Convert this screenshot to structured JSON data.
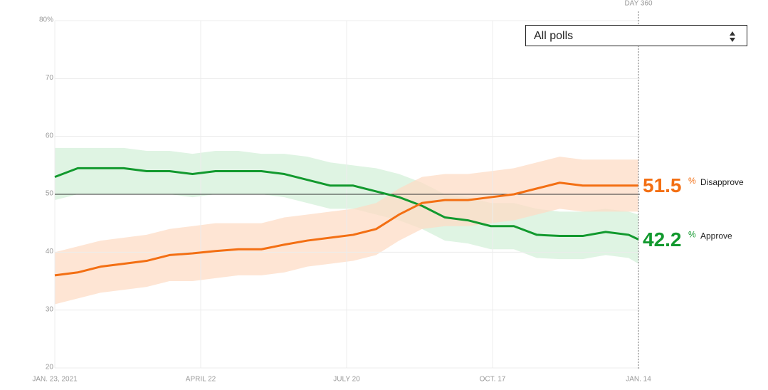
{
  "controls": {
    "dropdown": "All polls"
  },
  "chart_data": {
    "type": "line",
    "annotation": "DAY 360",
    "unit": "%",
    "x": [
      "2021-01-23",
      "2021-02-06",
      "2021-02-20",
      "2021-03-06",
      "2021-03-20",
      "2021-04-03",
      "2021-04-17",
      "2021-05-01",
      "2021-05-15",
      "2021-05-29",
      "2021-06-12",
      "2021-06-26",
      "2021-07-10",
      "2021-07-24",
      "2021-08-07",
      "2021-08-21",
      "2021-09-04",
      "2021-09-18",
      "2021-10-02",
      "2021-10-16",
      "2021-10-30",
      "2021-11-13",
      "2021-11-27",
      "2021-12-11",
      "2021-12-25",
      "2022-01-08",
      "2022-01-14"
    ],
    "xlim": [
      "2021-01-23",
      "2022-01-14"
    ],
    "xticks": [
      {
        "value": "2021-01-23",
        "label": "JAN. 23, 2021"
      },
      {
        "value": "2021-04-22",
        "label": "APRIL 22"
      },
      {
        "value": "2021-07-20",
        "label": "JULY 20"
      },
      {
        "value": "2021-10-17",
        "label": "OCT. 17"
      },
      {
        "value": "2022-01-14",
        "label": "JAN. 14"
      }
    ],
    "ylim": [
      20,
      80
    ],
    "yticks": [
      20,
      30,
      40,
      50,
      60,
      70,
      {
        "value": 80,
        "label": "80%"
      }
    ],
    "grid": true,
    "series": [
      {
        "name": "Approve",
        "color": "#12992e",
        "band_color": "#d4f0da",
        "values": [
          53,
          54.5,
          54.5,
          54.5,
          54,
          54,
          53.5,
          54,
          54,
          54,
          53.5,
          52.5,
          51.5,
          51.5,
          50.5,
          49.5,
          48,
          46,
          45.5,
          44.5,
          44.5,
          43,
          42.8,
          42.8,
          43.5,
          43,
          42.2
        ],
        "band_high": [
          58,
          58,
          58,
          58,
          57.5,
          57.5,
          57,
          57.5,
          57.5,
          57,
          57,
          56.5,
          55.5,
          55,
          54.5,
          53.5,
          52,
          50,
          49.5,
          48.5,
          48.5,
          47.5,
          47,
          47,
          47.5,
          47,
          46.5
        ],
        "band_low": [
          49,
          50,
          50,
          50,
          50,
          50,
          49.5,
          50,
          50,
          50,
          49.5,
          48.5,
          47.5,
          47.5,
          46.5,
          45.5,
          44,
          42,
          41.5,
          40.5,
          40.5,
          39,
          38.8,
          38.8,
          39.5,
          39,
          38
        ]
      },
      {
        "name": "Disapprove",
        "color": "#f36f13",
        "band_color": "#fddcc6",
        "values": [
          36,
          36.5,
          37.5,
          38,
          38.5,
          39.5,
          39.8,
          40.2,
          40.5,
          40.5,
          41.3,
          42,
          42.5,
          43,
          44,
          46.5,
          48.5,
          49,
          49,
          49.5,
          50,
          51,
          52,
          51.5,
          51.5,
          51.5,
          51.5
        ],
        "band_high": [
          40,
          41,
          42,
          42.5,
          43,
          44,
          44.5,
          45,
          45,
          45,
          46,
          46.5,
          47,
          47.5,
          48.5,
          51,
          53,
          53.5,
          53.5,
          54,
          54.5,
          55.5,
          56.5,
          56,
          56,
          56,
          56
        ],
        "band_low": [
          31,
          32,
          33,
          33.5,
          34,
          35,
          35,
          35.5,
          36,
          36,
          36.5,
          37.5,
          38,
          38.5,
          39.5,
          42,
          44,
          44.5,
          44.5,
          45,
          45.5,
          46.5,
          47.5,
          47,
          47,
          47,
          47
        ]
      }
    ]
  }
}
